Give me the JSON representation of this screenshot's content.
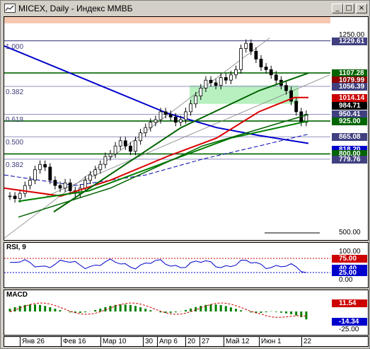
{
  "window": {
    "title": "MICEX, Daily - Индекс ММВБ",
    "buttons": {
      "minimize": "_",
      "maximize": "□",
      "close": "×"
    }
  },
  "main_chart": {
    "price_labels": [
      {
        "text": "1250.00",
        "value": 1250
      },
      {
        "text": "500.00",
        "value": 500
      }
    ],
    "level_tags": [
      {
        "text": "1229.61",
        "value": 1229.61,
        "bg": "#404080",
        "fg": "#ffffff"
      },
      {
        "text": "1107.28",
        "value": 1107.28,
        "bg": "#006400",
        "fg": "#ffffff"
      },
      {
        "text": "1079.99",
        "value": 1079.99,
        "bg": "#8b0000",
        "fg": "#ffffff"
      },
      {
        "text": "1056.39",
        "value": 1056.39,
        "bg": "#404080",
        "fg": "#ffffff"
      },
      {
        "text": "1014.14",
        "value": 1014.14,
        "bg": "#cc0000",
        "fg": "#ffffff"
      },
      {
        "text": "984.71",
        "value": 984.71,
        "bg": "#000000",
        "fg": "#ffffff"
      },
      {
        "text": "950.41",
        "value": 950.41,
        "bg": "#404080",
        "fg": "#ffffff"
      },
      {
        "text": "925.00",
        "value": 925.0,
        "bg": "#006400",
        "fg": "#ffffff"
      },
      {
        "text": "865.08",
        "value": 865.08,
        "bg": "#404080",
        "fg": "#ffffff"
      },
      {
        "text": "818.20",
        "value": 818.2,
        "bg": "#0000cc",
        "fg": "#ffffff"
      },
      {
        "text": "800.00",
        "value": 800.0,
        "bg": "#006400",
        "fg": "#ffffff"
      },
      {
        "text": "779.76",
        "value": 779.76,
        "bg": "#404080",
        "fg": "#ffffff"
      }
    ],
    "fib_labels": [
      "1.000",
      "0.382",
      "0.618",
      "0.500",
      "0.382"
    ],
    "colors": {
      "ma_red": "#dd0000",
      "ma_green": "#008000",
      "trend_blue": "#0000cc",
      "fib_zone": "#b8f0c0"
    }
  },
  "rsi": {
    "label": "RSI, 9",
    "levels": [
      {
        "text": "100.00",
        "value": 100,
        "bg": "#ffffff",
        "fg": "#000000"
      },
      {
        "text": "75.00",
        "value": 75,
        "bg": "#cc0000",
        "fg": "#ffffff"
      },
      {
        "text": "40.40",
        "value": 40.4,
        "bg": "#0000cc",
        "fg": "#ffffff"
      },
      {
        "text": "25.00",
        "value": 25,
        "bg": "#0000cc",
        "fg": "#ffffff"
      },
      {
        "text": "0.00",
        "value": 0,
        "bg": "#ffffff",
        "fg": "#000000"
      }
    ]
  },
  "macd": {
    "label": "MACD",
    "levels": [
      {
        "text": "11.54",
        "value": 11.54,
        "bg": "#cc0000",
        "fg": "#ffffff"
      },
      {
        "text": "-14.34",
        "value": -14.34,
        "bg": "#0000cc",
        "fg": "#ffffff"
      },
      {
        "text": "-25.00",
        "value": -25,
        "bg": "#ffffff",
        "fg": "#000000"
      }
    ]
  },
  "x_axis": {
    "labels": [
      "Янв 26",
      "Фев 16",
      "Мар 10",
      "30",
      "Апр 6",
      "20",
      "27",
      "Май 12",
      "Июн 1",
      "22"
    ]
  }
}
